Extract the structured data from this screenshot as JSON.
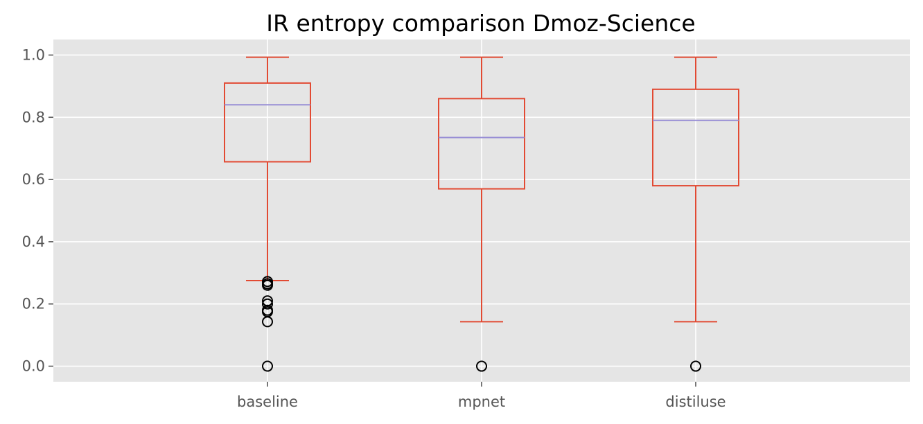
{
  "chart_data": {
    "type": "box",
    "title": "IR entropy comparison Dmoz-Science",
    "xlabel": "",
    "ylabel": "",
    "ylim": [
      -0.05,
      1.05
    ],
    "yticks": [
      0.0,
      0.2,
      0.4,
      0.6,
      0.8,
      1.0
    ],
    "ytick_labels": [
      "0.0",
      "0.2",
      "0.4",
      "0.6",
      "0.8",
      "1.0"
    ],
    "grid": true,
    "legend": "none",
    "categories": [
      "baseline",
      "mpnet",
      "distiluse"
    ],
    "boxes": [
      {
        "label": "baseline",
        "whisker_low": 0.275,
        "q1": 0.657,
        "median": 0.84,
        "q3": 0.91,
        "whisker_high": 0.993,
        "outliers": [
          0.272,
          0.265,
          0.26,
          0.21,
          0.2,
          0.18,
          0.175,
          0.143,
          0.0
        ]
      },
      {
        "label": "mpnet",
        "whisker_low": 0.143,
        "q1": 0.57,
        "median": 0.735,
        "q3": 0.86,
        "whisker_high": 0.993,
        "outliers": [
          0.0
        ]
      },
      {
        "label": "distiluse",
        "whisker_low": 0.143,
        "q1": 0.58,
        "median": 0.79,
        "q3": 0.89,
        "whisker_high": 0.993,
        "outliers": [
          0.0
        ]
      }
    ],
    "colors": {
      "plot_background": "#E5E5E5",
      "grid": "#FFFFFF",
      "box": "#E24A33",
      "median": "#988ED5",
      "outlier": "#000000",
      "tick_label": "#555555"
    }
  }
}
